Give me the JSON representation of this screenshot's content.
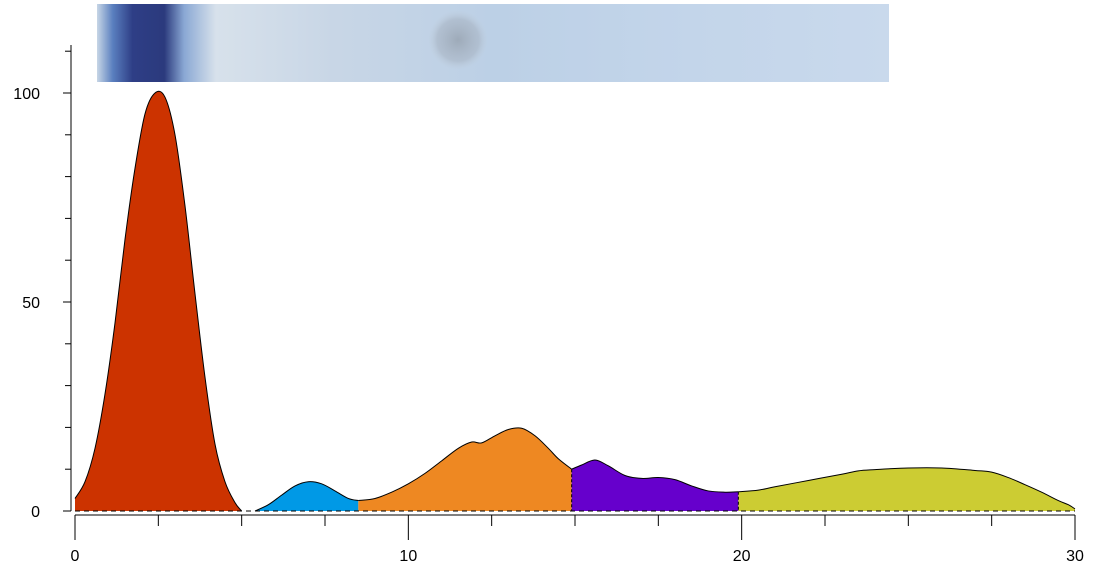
{
  "chart_data": {
    "type": "area",
    "title": "",
    "xlabel": "",
    "ylabel": "",
    "xlim": [
      0,
      30
    ],
    "ylim": [
      0,
      110
    ],
    "x_ticks": [
      "0",
      "10",
      "20",
      "30"
    ],
    "y_ticks": [
      "0",
      "50",
      "100"
    ],
    "grid": false,
    "legend": "none",
    "baseline_style": "dashed",
    "lane_image": {
      "description_colors": [
        "#2b3a7d",
        "#c5d6e8",
        "#a9b7c6"
      ],
      "dark_band_center_x": 2.7,
      "smudge_center_x": 11.6
    },
    "series": [
      {
        "color": "#cc3300",
        "points": [
          [
            0.0,
            3
          ],
          [
            0.3,
            7
          ],
          [
            0.6,
            15
          ],
          [
            0.9,
            28
          ],
          [
            1.2,
            45
          ],
          [
            1.5,
            65
          ],
          [
            1.8,
            82
          ],
          [
            2.1,
            95
          ],
          [
            2.4,
            100
          ],
          [
            2.7,
            99
          ],
          [
            3.0,
            90
          ],
          [
            3.3,
            73
          ],
          [
            3.6,
            52
          ],
          [
            3.9,
            32
          ],
          [
            4.2,
            16
          ],
          [
            4.5,
            7
          ],
          [
            4.8,
            2
          ],
          [
            5.0,
            0
          ]
        ]
      },
      {
        "color": "#0099e6",
        "points": [
          [
            5.4,
            0
          ],
          [
            5.8,
            1.5
          ],
          [
            6.2,
            3.8
          ],
          [
            6.6,
            6
          ],
          [
            7.0,
            7
          ],
          [
            7.4,
            6.5
          ],
          [
            7.8,
            4.8
          ],
          [
            8.2,
            3
          ],
          [
            8.5,
            2.5
          ]
        ]
      },
      {
        "color": "#ee8822",
        "points": [
          [
            8.5,
            2.5
          ],
          [
            9.0,
            3
          ],
          [
            9.5,
            4.5
          ],
          [
            10.0,
            6.5
          ],
          [
            10.5,
            9
          ],
          [
            11.0,
            12
          ],
          [
            11.5,
            15
          ],
          [
            11.9,
            16.5
          ],
          [
            12.2,
            16.3
          ],
          [
            12.6,
            18
          ],
          [
            13.0,
            19.5
          ],
          [
            13.4,
            19.8
          ],
          [
            13.8,
            18
          ],
          [
            14.2,
            15
          ],
          [
            14.5,
            12.5
          ],
          [
            14.9,
            10
          ]
        ]
      },
      {
        "color": "#6600cc",
        "points": [
          [
            14.9,
            10
          ],
          [
            15.2,
            11
          ],
          [
            15.6,
            12.2
          ],
          [
            16.0,
            10.8
          ],
          [
            16.5,
            8.5
          ],
          [
            17.0,
            7.8
          ],
          [
            17.5,
            8
          ],
          [
            18.0,
            7.5
          ],
          [
            18.5,
            6
          ],
          [
            19.0,
            4.8
          ],
          [
            19.5,
            4.5
          ],
          [
            19.9,
            4.6
          ]
        ]
      },
      {
        "color": "#cccc33",
        "points": [
          [
            19.9,
            4.6
          ],
          [
            20.5,
            5
          ],
          [
            21,
            5.8
          ],
          [
            22,
            7.3
          ],
          [
            23,
            8.8
          ],
          [
            23.5,
            9.6
          ],
          [
            24,
            9.9
          ],
          [
            25,
            10.3
          ],
          [
            26,
            10.3
          ],
          [
            27,
            9.7
          ],
          [
            27.5,
            9.3
          ],
          [
            28,
            8
          ],
          [
            28.5,
            6.3
          ],
          [
            29,
            4.5
          ],
          [
            29.5,
            2.5
          ],
          [
            29.8,
            1.5
          ],
          [
            30,
            0.5
          ]
        ]
      }
    ]
  }
}
